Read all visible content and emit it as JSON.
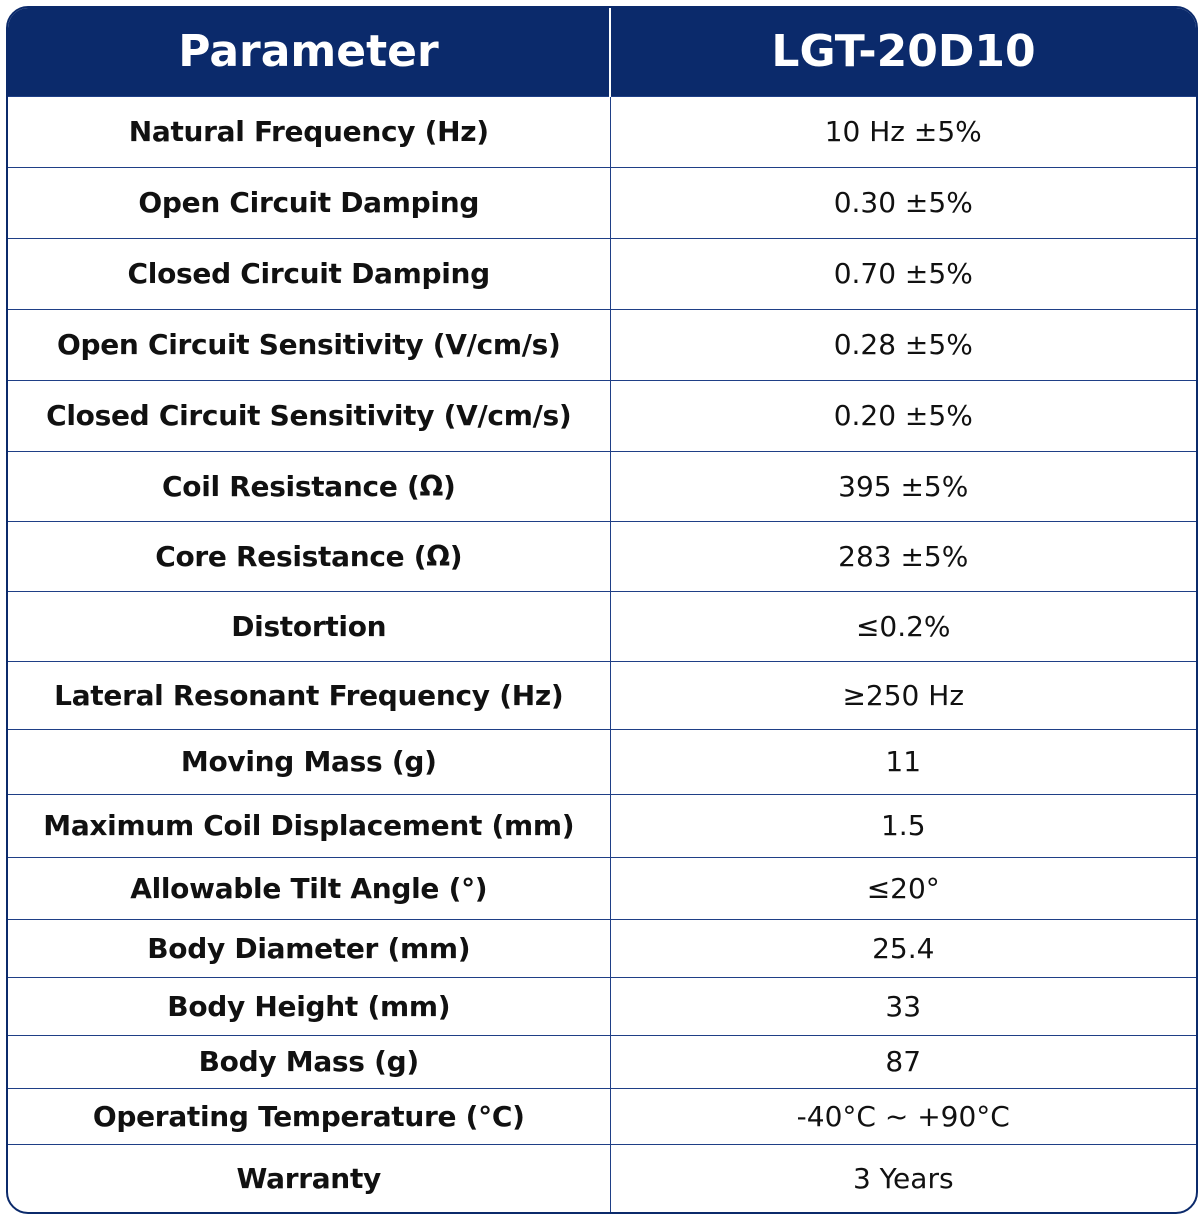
{
  "header": {
    "parameter_label": "Parameter",
    "model_label": "LGT-20D10"
  },
  "rows": [
    {
      "parameter": "Natural Frequency (Hz)",
      "value": "10 Hz ±5%"
    },
    {
      "parameter": "Open Circuit Damping",
      "value": "0.30 ±5%"
    },
    {
      "parameter": "Closed Circuit Damping",
      "value": "0.70 ±5%"
    },
    {
      "parameter": "Open Circuit Sensitivity (V/cm/s)",
      "value": "0.28 ±5%"
    },
    {
      "parameter": "Closed Circuit Sensitivity (V/cm/s)",
      "value": "0.20 ±5%"
    },
    {
      "parameter": "Coil Resistance (Ω)",
      "value": "395 ±5%"
    },
    {
      "parameter": "Core Resistance (Ω)",
      "value": "283 ±5%"
    },
    {
      "parameter": "Distortion",
      "value": "≤0.2%"
    },
    {
      "parameter": "Lateral Resonant Frequency (Hz)",
      "value": "≥250 Hz"
    },
    {
      "parameter": "Moving Mass (g)",
      "value": "11"
    },
    {
      "parameter": "Maximum Coil Displacement (mm)",
      "value": "1.5"
    },
    {
      "parameter": "Allowable Tilt Angle (°)",
      "value": "≤20°"
    },
    {
      "parameter": "Body Diameter (mm)",
      "value": "25.4"
    },
    {
      "parameter": "Body Height (mm)",
      "value": "33"
    },
    {
      "parameter": "Body Mass (g)",
      "value": "87"
    },
    {
      "parameter": "Operating Temperature (°C)",
      "value": "-40°C ~ +90°C"
    },
    {
      "parameter": "Warranty",
      "value": "3 Years"
    }
  ],
  "colors": {
    "header_bg": "#0b2a6b",
    "border": "#1f3f86"
  }
}
